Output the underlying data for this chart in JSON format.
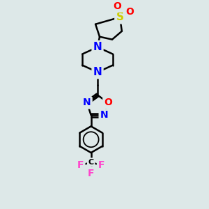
{
  "background_color": "#dde8e8",
  "bond_color": "#000000",
  "bond_width": 1.8,
  "atom_colors": {
    "N": "#0000ff",
    "O": "#ff0000",
    "S": "#cccc00",
    "F": "#ff44cc",
    "C": "#000000"
  },
  "font_size_large": 11,
  "font_size_medium": 10,
  "font_size_small": 9
}
